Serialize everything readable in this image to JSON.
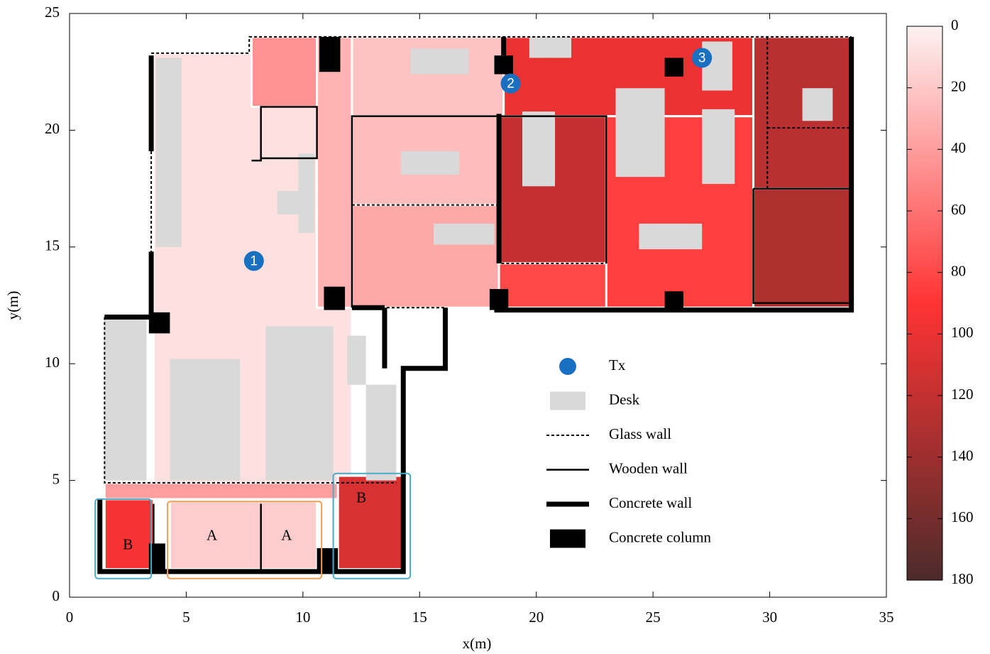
{
  "chart_data": {
    "type": "floorplan-heatmap",
    "xlabel": "x(m)",
    "ylabel": "y(m)",
    "xlim": [
      0,
      35
    ],
    "ylim": [
      0,
      25
    ],
    "xticks": [
      0,
      5,
      10,
      15,
      20,
      25,
      30,
      35
    ],
    "yticks": [
      0,
      5,
      10,
      15,
      20,
      25
    ],
    "colorbar": {
      "lim": [
        0,
        180
      ],
      "ticks": [
        0,
        20,
        40,
        60,
        80,
        100,
        120,
        140,
        160,
        180
      ],
      "colors": [
        "#fdf2f2",
        "#ff3333",
        "#4d2b2b"
      ]
    },
    "regions": [
      {
        "bounds": [
          3.6,
          4.6,
          12.1,
          23.3
        ],
        "value": 8
      },
      {
        "bounds": [
          7.8,
          21,
          10.6,
          24
        ],
        "value": 45
      },
      {
        "bounds": [
          10.6,
          12.4,
          12.1,
          24
        ],
        "value": 30
      },
      {
        "bounds": [
          12.1,
          20.6,
          18.6,
          24
        ],
        "value": 22
      },
      {
        "bounds": [
          12.1,
          16.8,
          18.4,
          20.6
        ],
        "value": 25
      },
      {
        "bounds": [
          12.1,
          12.4,
          18.4,
          16.8
        ],
        "value": 35
      },
      {
        "bounds": [
          18.6,
          20.6,
          29.3,
          24
        ],
        "value": 100
      },
      {
        "bounds": [
          18.4,
          14.3,
          23,
          20.6
        ],
        "value": 120
      },
      {
        "bounds": [
          18.4,
          12.4,
          23,
          14.3
        ],
        "value": 80
      },
      {
        "bounds": [
          23,
          12.4,
          29.3,
          20.6
        ],
        "value": 85
      },
      {
        "bounds": [
          29.3,
          17.5,
          33.5,
          24
        ],
        "value": 125
      },
      {
        "bounds": [
          29.3,
          12.4,
          33.5,
          17.5
        ],
        "value": 130
      },
      {
        "bounds": [
          1.5,
          4.2,
          14.0,
          4.9
        ],
        "value": 40
      },
      {
        "bounds": [
          1.5,
          1.2,
          3.6,
          4.2
        ],
        "value": 95
      },
      {
        "bounds": [
          4.3,
          1.2,
          10.6,
          4.1
        ],
        "value": 18
      },
      {
        "bounds": [
          11.5,
          1.2,
          14.3,
          5.2
        ],
        "value": 110
      }
    ],
    "desks": [
      [
        3.7,
        15.0,
        4.8,
        23.1
      ],
      [
        1.5,
        5.0,
        3.3,
        12.0
      ],
      [
        4.3,
        5.0,
        7.3,
        10.2
      ],
      [
        8.4,
        5.0,
        11.3,
        11.6
      ],
      [
        11.9,
        9.1,
        12.7,
        11.2
      ],
      [
        12.7,
        5.0,
        14.0,
        9.1
      ],
      [
        8.9,
        16.4,
        10.4,
        17.4
      ],
      [
        9.8,
        15.6,
        10.5,
        19.0
      ],
      [
        14.2,
        18.1,
        16.7,
        19.1
      ],
      [
        15.6,
        15.1,
        18.2,
        16.0
      ],
      [
        14.6,
        22.4,
        17.1,
        23.5
      ],
      [
        19.4,
        17.6,
        20.8,
        20.8
      ],
      [
        23.4,
        18.0,
        25.5,
        21.8
      ],
      [
        24.4,
        14.9,
        27.1,
        16.0
      ],
      [
        27.1,
        17.7,
        28.5,
        20.9
      ],
      [
        27.1,
        21.7,
        28.4,
        23.8
      ],
      [
        19.7,
        23.1,
        21.5,
        24.0
      ],
      [
        31.4,
        20.4,
        32.7,
        21.8
      ]
    ],
    "concrete_walls": [
      [
        [
          3.5,
          23.2
        ],
        [
          3.5,
          19.1
        ]
      ],
      [
        [
          3.5,
          14.8
        ],
        [
          3.5,
          12.0
        ]
      ],
      [
        [
          1.5,
          12.0
        ],
        [
          3.5,
          12.0
        ]
      ],
      [
        [
          1.3,
          4.2
        ],
        [
          1.3,
          1.1
        ],
        [
          14.3,
          1.1
        ],
        [
          14.3,
          9.8
        ],
        [
          16.1,
          9.8
        ],
        [
          16.1,
          12.4
        ]
      ],
      [
        [
          13.5,
          12.4
        ],
        [
          13.5,
          9.8
        ]
      ],
      [
        [
          12.1,
          12.4
        ],
        [
          13.5,
          12.4
        ]
      ],
      [
        [
          18.2,
          12.3
        ],
        [
          33.5,
          12.3
        ],
        [
          33.5,
          24.0
        ]
      ],
      [
        [
          18.4,
          14.3
        ],
        [
          18.4,
          20.7
        ]
      ],
      [
        [
          18.6,
          23.2
        ],
        [
          18.6,
          24.0
        ]
      ]
    ],
    "glass_walls": [
      [
        [
          3.5,
          23.3
        ],
        [
          7.7,
          23.3
        ],
        [
          7.7,
          24.0
        ],
        [
          33.5,
          24.0
        ]
      ],
      [
        [
          3.5,
          19.1
        ],
        [
          3.5,
          14.8
        ]
      ],
      [
        [
          1.5,
          12.0
        ],
        [
          1.5,
          4.9
        ],
        [
          14.0,
          4.9
        ]
      ],
      [
        [
          12.1,
          12.4
        ],
        [
          16.1,
          12.4
        ]
      ],
      [
        [
          12.1,
          16.8
        ],
        [
          18.4,
          16.8
        ]
      ],
      [
        [
          18.5,
          14.3
        ],
        [
          23.0,
          14.3
        ]
      ],
      [
        [
          29.9,
          24.0
        ],
        [
          29.9,
          17.5
        ]
      ],
      [
        [
          29.9,
          20.1
        ],
        [
          33.5,
          20.1
        ]
      ]
    ],
    "wooden_walls": [
      [
        [
          12.1,
          12.4
        ],
        [
          12.1,
          20.6
        ],
        [
          23.0,
          20.6
        ],
        [
          23.0,
          14.3
        ]
      ],
      [
        [
          7.8,
          18.7
        ],
        [
          8.2,
          18.7
        ],
        [
          8.2,
          21.0
        ],
        [
          10.6,
          21.0
        ],
        [
          10.6,
          18.8
        ],
        [
          8.2,
          18.8
        ]
      ],
      [
        [
          8.2,
          1.2
        ],
        [
          8.2,
          4.0
        ]
      ],
      [
        [
          3.6,
          1.2
        ],
        [
          3.6,
          4.0
        ]
      ],
      [
        [
          29.3,
          17.5
        ],
        [
          33.5,
          17.5
        ],
        [
          33.5,
          12.6
        ],
        [
          29.3,
          12.6
        ],
        [
          29.3,
          17.5
        ]
      ]
    ],
    "columns": [
      [
        10.7,
        22.5,
        11.6,
        24.0
      ],
      [
        18.2,
        22.4,
        19.0,
        23.2
      ],
      [
        25.5,
        22.3,
        26.3,
        23.1
      ],
      [
        3.4,
        11.3,
        4.3,
        12.2
      ],
      [
        10.9,
        12.3,
        11.8,
        13.3
      ],
      [
        18.0,
        12.3,
        18.8,
        13.2
      ],
      [
        25.5,
        12.3,
        26.3,
        13.1
      ],
      [
        3.4,
        1.1,
        4.1,
        2.3
      ],
      [
        10.6,
        1.1,
        11.5,
        2.1
      ]
    ],
    "tx": [
      {
        "label": "1",
        "x": 7.9,
        "y": 14.4
      },
      {
        "label": "2",
        "x": 18.9,
        "y": 22.0
      },
      {
        "label": "3",
        "x": 27.1,
        "y": 23.1
      }
    ],
    "annotations": [
      {
        "text": "A",
        "box": [
          4.2,
          0.8,
          10.8,
          4.1
        ],
        "color": "#f0a050",
        "x": 6.1,
        "y": 2.6
      },
      {
        "text": "A",
        "x": 9.3,
        "y": 2.6,
        "color": "#f0a050"
      },
      {
        "text": "B",
        "box": [
          1.1,
          0.8,
          3.5,
          4.2
        ],
        "color": "#4aaac8",
        "x": 2.5,
        "y": 2.2
      },
      {
        "text": "B",
        "box": [
          11.3,
          0.8,
          14.6,
          5.3
        ],
        "color": "#4aaac8",
        "x": 12.5,
        "y": 4.2
      }
    ],
    "legend": [
      "Tx",
      "Desk",
      "Glass wall",
      "Wooden wall",
      "Concrete wall",
      "Concrete column"
    ]
  }
}
